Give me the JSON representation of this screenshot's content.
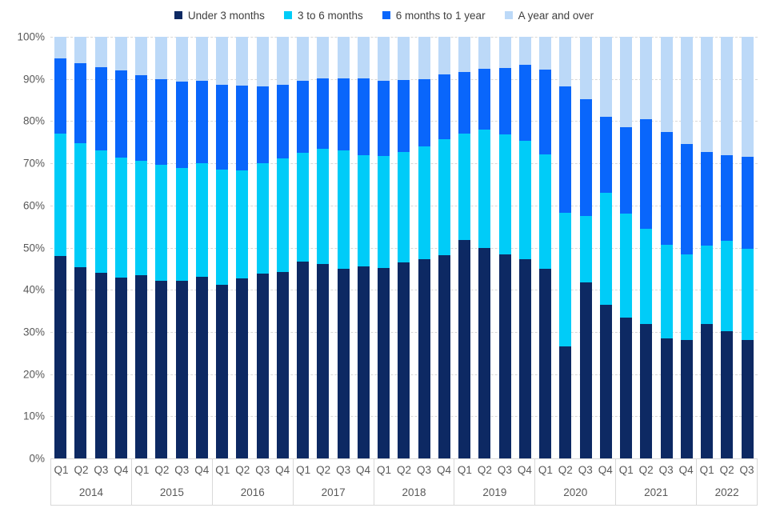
{
  "chart_data": {
    "type": "bar",
    "subtype": "stacked-100-percent",
    "title": "",
    "legend_position": "top",
    "grid": "horizontal-dashed",
    "ylim": [
      0,
      100
    ],
    "y_ticks": [
      "100%",
      "90%",
      "80%",
      "70%",
      "60%",
      "50%",
      "40%",
      "30%",
      "20%",
      "10%",
      "0%"
    ],
    "x_groups": [
      {
        "year": "2014",
        "quarters": [
          "Q1",
          "Q2",
          "Q3",
          "Q4"
        ]
      },
      {
        "year": "2015",
        "quarters": [
          "Q1",
          "Q2",
          "Q3",
          "Q4"
        ]
      },
      {
        "year": "2016",
        "quarters": [
          "Q1",
          "Q2",
          "Q3",
          "Q4"
        ]
      },
      {
        "year": "2017",
        "quarters": [
          "Q1",
          "Q2",
          "Q3",
          "Q4"
        ]
      },
      {
        "year": "2018",
        "quarters": [
          "Q1",
          "Q2",
          "Q3",
          "Q4"
        ]
      },
      {
        "year": "2019",
        "quarters": [
          "Q1",
          "Q2",
          "Q3",
          "Q4"
        ]
      },
      {
        "year": "2020",
        "quarters": [
          "Q1",
          "Q2",
          "Q3",
          "Q4"
        ]
      },
      {
        "year": "2021",
        "quarters": [
          "Q1",
          "Q2",
          "Q3",
          "Q4"
        ]
      },
      {
        "year": "2022",
        "quarters": [
          "Q1",
          "Q2",
          "Q3"
        ]
      }
    ],
    "series": [
      {
        "name": "Under 3 months",
        "color": "#0D2963",
        "values": [
          48.0,
          45.3,
          44.0,
          42.8,
          43.5,
          42.2,
          42.1,
          43.1,
          41.2,
          42.7,
          43.9,
          44.3,
          46.6,
          46.2,
          44.9,
          45.5,
          45.1,
          46.5,
          47.3,
          48.2,
          51.8,
          50.0,
          48.4,
          47.2,
          45.0,
          26.6,
          41.7,
          36.4,
          33.4,
          31.8,
          28.5,
          28.0,
          31.8,
          30.2,
          28.0
        ]
      },
      {
        "name": "3 to 6 months",
        "color": "#00CCF8",
        "values": [
          29.0,
          29.5,
          29.0,
          28.6,
          27.0,
          27.4,
          26.8,
          27.0,
          27.3,
          25.6,
          26.1,
          26.8,
          25.9,
          27.3,
          28.1,
          26.5,
          26.6,
          26.2,
          26.7,
          27.6,
          25.2,
          28.0,
          28.4,
          28.1,
          27.2,
          31.6,
          15.8,
          26.6,
          24.6,
          22.7,
          22.1,
          20.3,
          18.6,
          21.4,
          21.7
        ]
      },
      {
        "name": "6 months to 1 year",
        "color": "#0966FB",
        "values": [
          17.9,
          19.0,
          19.8,
          20.6,
          20.4,
          20.4,
          20.5,
          19.5,
          20.1,
          20.1,
          18.3,
          17.5,
          17.1,
          16.6,
          17.2,
          18.2,
          17.8,
          17.0,
          15.9,
          15.2,
          14.6,
          14.4,
          15.8,
          18.0,
          20.0,
          30.0,
          27.7,
          18.1,
          20.5,
          25.9,
          26.8,
          26.2,
          22.3,
          20.4,
          21.8
        ]
      },
      {
        "name": "A year and over",
        "color": "#BCD9F8",
        "values": [
          5.1,
          6.2,
          7.2,
          8.0,
          9.1,
          10.0,
          10.6,
          10.4,
          11.4,
          11.6,
          11.7,
          11.4,
          10.4,
          9.9,
          9.8,
          9.8,
          10.5,
          10.3,
          10.1,
          9.0,
          8.4,
          7.6,
          7.4,
          6.7,
          7.8,
          11.8,
          14.8,
          18.9,
          21.5,
          19.6,
          22.6,
          25.5,
          27.3,
          28.0,
          28.5
        ]
      }
    ]
  }
}
